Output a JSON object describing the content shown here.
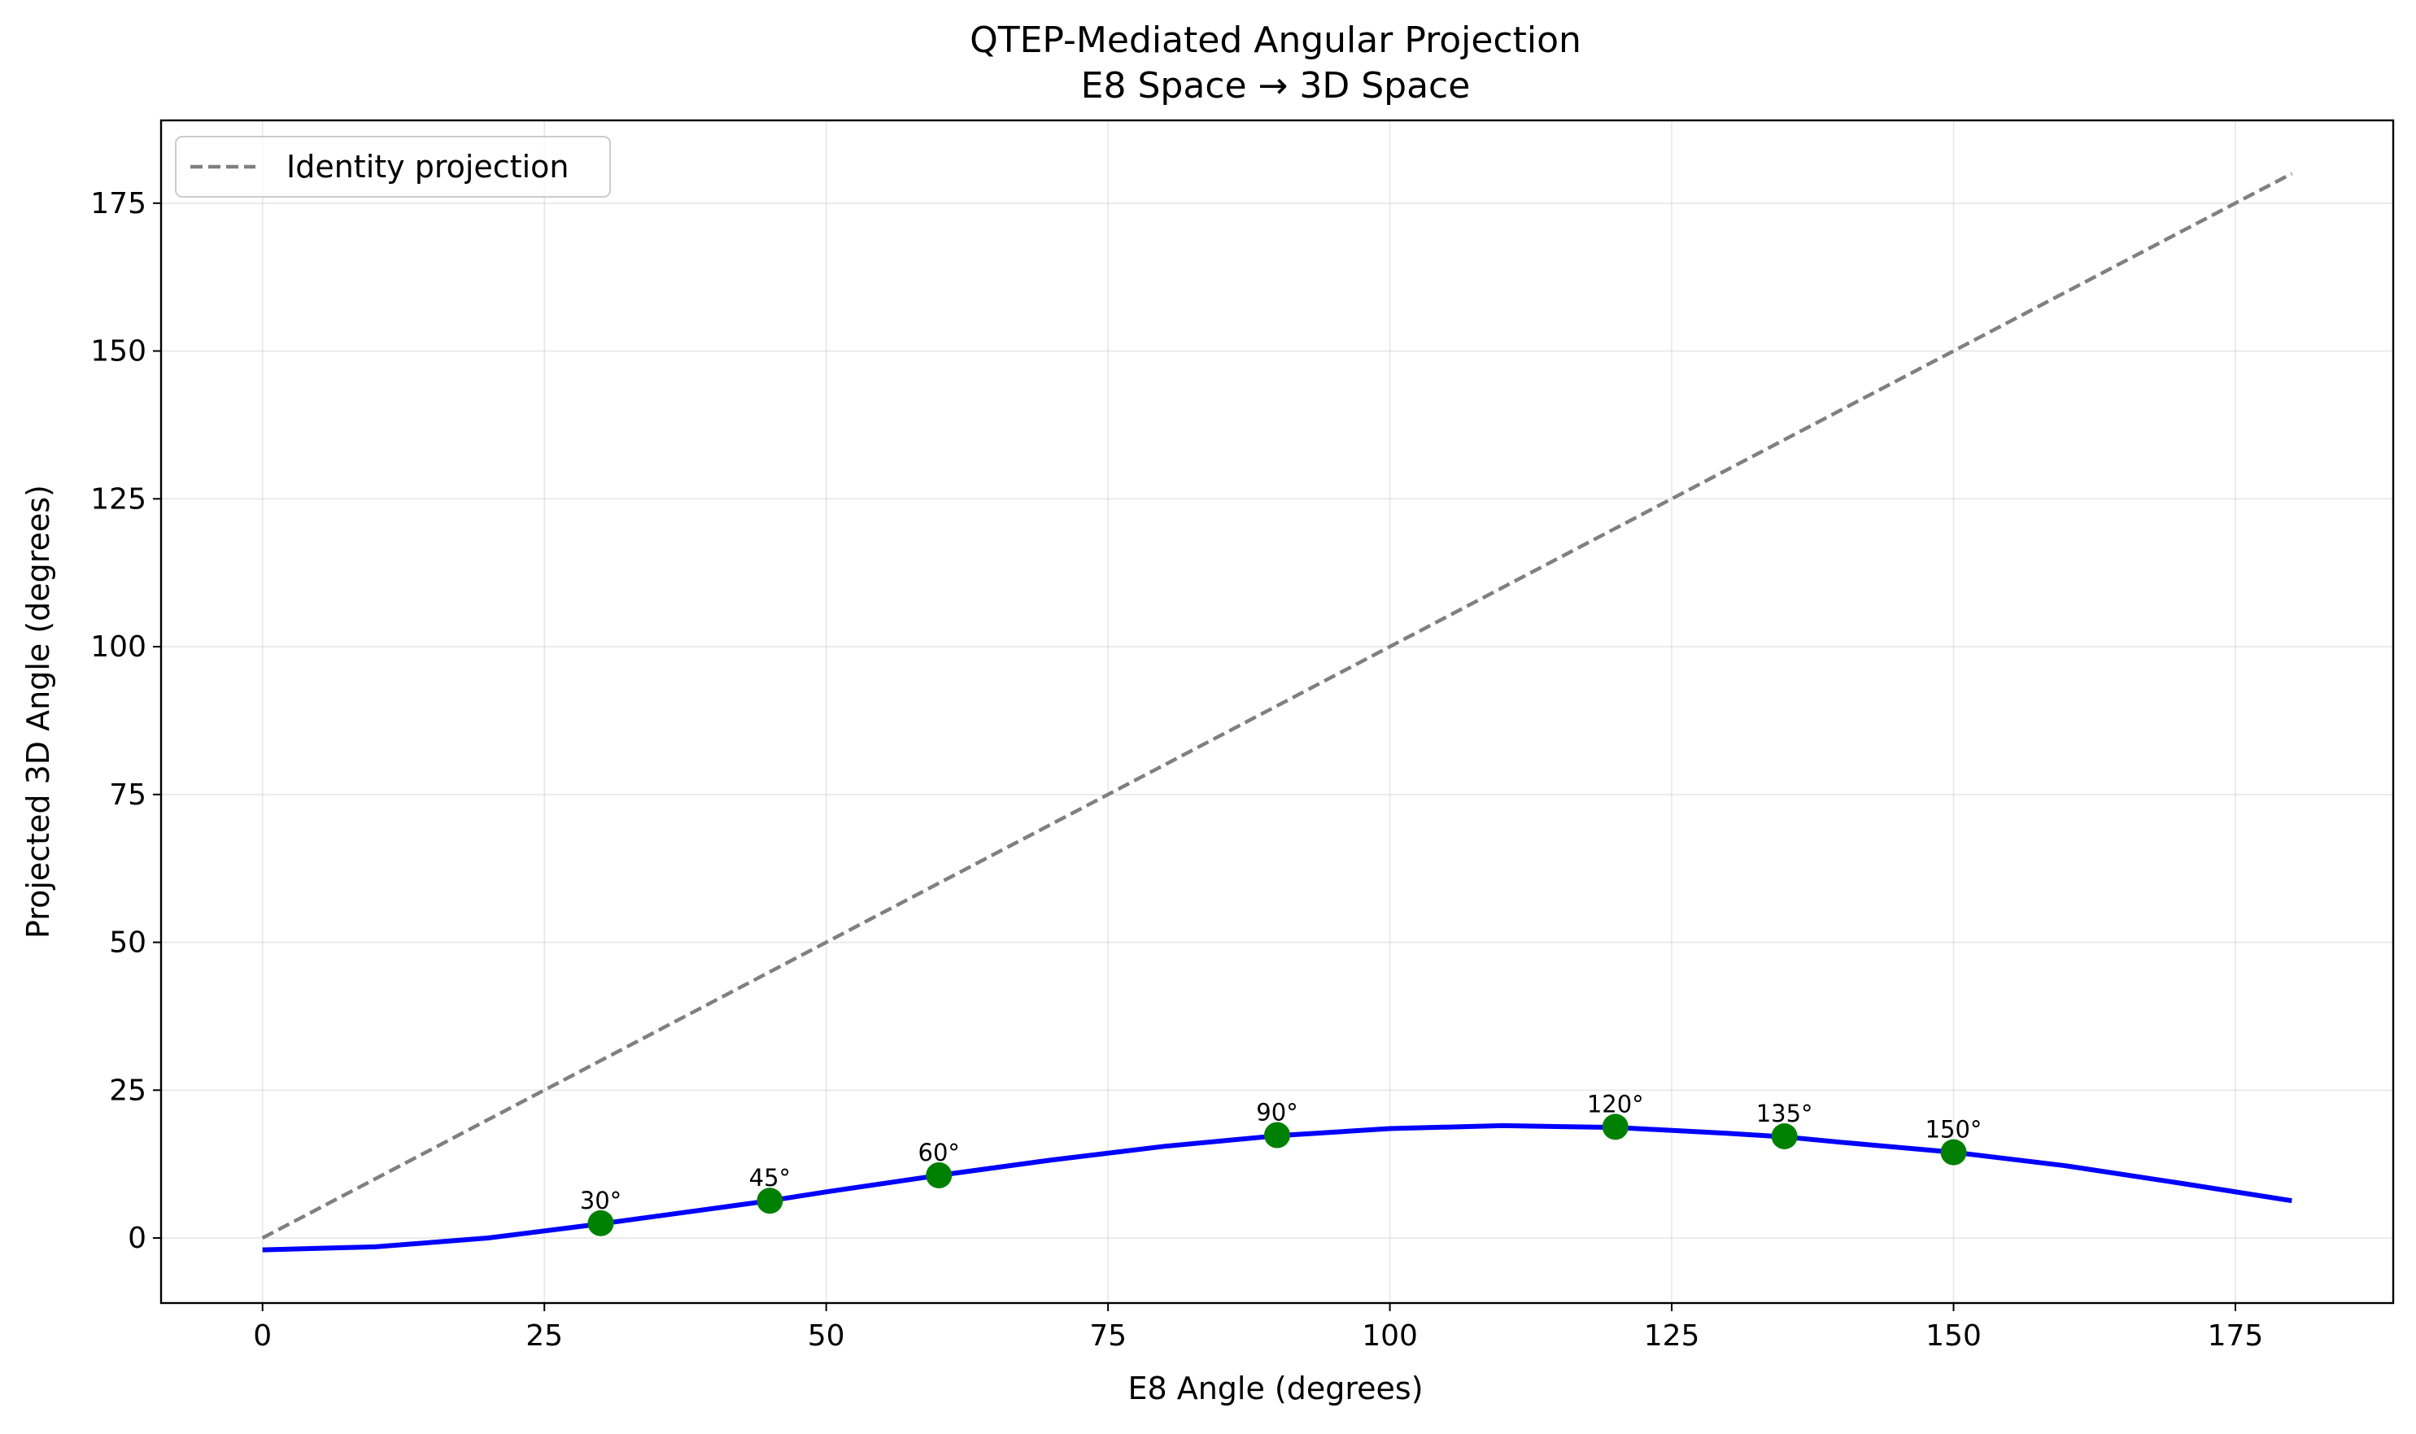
{
  "chart_data": {
    "type": "line",
    "title": "QTEP-Mediated Angular Projection",
    "subtitle": "E8 Space → 3D Space",
    "xlabel": "E8 Angle (degrees)",
    "ylabel": "Projected 3D Angle (degrees)",
    "xlim": [
      -9,
      189
    ],
    "ylim": [
      -11,
      189
    ],
    "xticks": [
      0,
      25,
      50,
      75,
      100,
      125,
      150,
      175
    ],
    "yticks": [
      0,
      25,
      50,
      75,
      100,
      125,
      150,
      175
    ],
    "grid": true,
    "legend": {
      "position": "top-left",
      "entries": [
        {
          "label": "Identity projection",
          "style": "dashed",
          "color": "#808080"
        }
      ]
    },
    "series": [
      {
        "name": "Identity projection",
        "style": "dashed",
        "color": "#808080",
        "points": [
          [
            0,
            0
          ],
          [
            180,
            180
          ]
        ]
      },
      {
        "style": "solid",
        "color": "#0000ff",
        "points": [
          [
            0,
            -2.0
          ],
          [
            10,
            -1.5
          ],
          [
            20,
            0.0
          ],
          [
            30,
            2.4
          ],
          [
            40,
            5.0
          ],
          [
            45,
            6.3
          ],
          [
            50,
            7.8
          ],
          [
            60,
            10.6
          ],
          [
            70,
            13.2
          ],
          [
            80,
            15.5
          ],
          [
            90,
            17.3
          ],
          [
            100,
            18.5
          ],
          [
            110,
            19.0
          ],
          [
            120,
            18.7
          ],
          [
            130,
            17.7
          ],
          [
            135,
            17.1
          ],
          [
            140,
            16.2
          ],
          [
            150,
            14.5
          ],
          [
            160,
            12.2
          ],
          [
            170,
            9.3
          ],
          [
            180,
            6.3
          ]
        ]
      }
    ],
    "markers": {
      "color": "#008000",
      "points": [
        {
          "x": 30,
          "y": 2.5,
          "label": "30°"
        },
        {
          "x": 45,
          "y": 6.3,
          "label": "45°"
        },
        {
          "x": 60,
          "y": 10.6,
          "label": "60°"
        },
        {
          "x": 90,
          "y": 17.4,
          "label": "90°"
        },
        {
          "x": 120,
          "y": 18.8,
          "label": "120°"
        },
        {
          "x": 135,
          "y": 17.2,
          "label": "135°"
        },
        {
          "x": 150,
          "y": 14.5,
          "label": "150°"
        }
      ]
    }
  }
}
